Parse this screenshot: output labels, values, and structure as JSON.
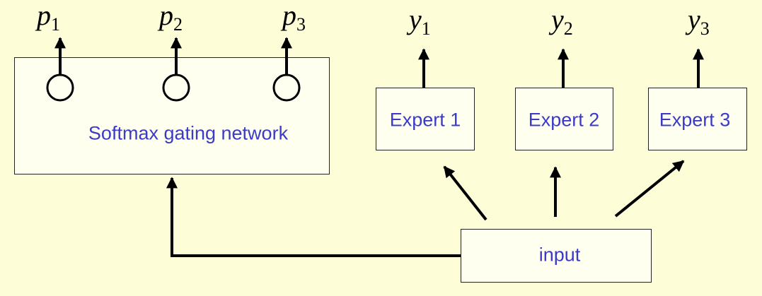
{
  "gating": {
    "label": "Softmax gating network"
  },
  "experts": [
    {
      "label": "Expert 1"
    },
    {
      "label": "Expert 2"
    },
    {
      "label": "Expert 3"
    }
  ],
  "input": {
    "label": "input"
  },
  "gate_outputs": [
    {
      "var": "p",
      "sub": "1"
    },
    {
      "var": "p",
      "sub": "2"
    },
    {
      "var": "p",
      "sub": "3"
    }
  ],
  "expert_outputs": [
    {
      "var": "y",
      "sub": "1"
    },
    {
      "var": "y",
      "sub": "2"
    },
    {
      "var": "y",
      "sub": "3"
    }
  ],
  "colors": {
    "background": "#fdfdd8",
    "box_fill": "#fffff0",
    "label": "#3b3bc8",
    "line": "#000000"
  }
}
